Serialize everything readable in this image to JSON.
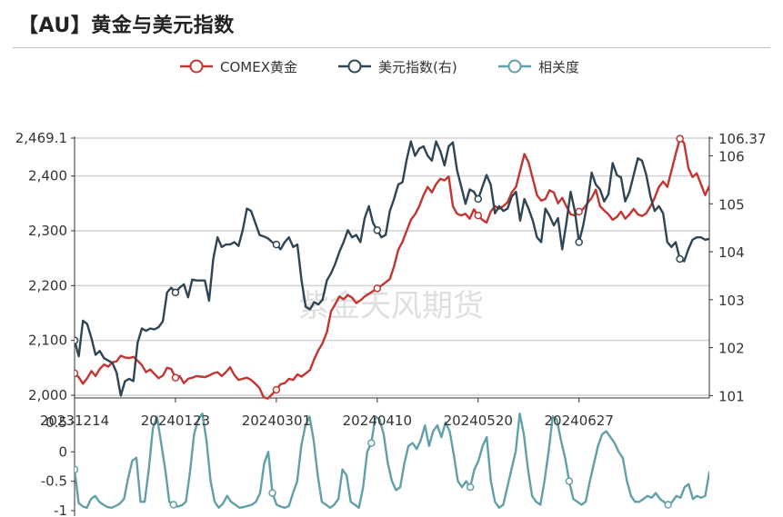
{
  "page": {
    "title": "【AU】黄金与美元指数"
  },
  "watermark": "紫金天风期货",
  "chart_data": [
    {
      "type": "line",
      "title": "【AU】黄金与美元指数",
      "legend": {
        "position": "top-center",
        "entries": [
          {
            "name": "COMEX黄金",
            "color": "#c23531",
            "axis": "left"
          },
          {
            "name": "美元指数(右)",
            "color": "#2f4554",
            "axis": "right"
          }
        ]
      },
      "grid": true,
      "x_ticks": [
        "20231214",
        "20240123",
        "20240301",
        "20240410",
        "20240520",
        "20240627"
      ],
      "y_left": {
        "ticks": [
          "2,000",
          "2,100",
          "2,200",
          "2,300",
          "2,400",
          "2,469.1"
        ],
        "range": [
          1995,
          2469.1
        ]
      },
      "y_right": {
        "ticks": [
          "101",
          "102",
          "103",
          "104",
          "105",
          "106",
          "106.37"
        ],
        "range": [
          100.95,
          106.37
        ]
      },
      "series": [
        {
          "name": "COMEX黄金",
          "axis": "left",
          "color": "#c23531",
          "values": [
            2040,
            2033,
            2021,
            2031,
            2044,
            2035,
            2048,
            2056,
            2052,
            2060,
            2062,
            2072,
            2069,
            2068,
            2070,
            2063,
            2055,
            2042,
            2047,
            2039,
            2031,
            2036,
            2050,
            2048,
            2032,
            2035,
            2022,
            2030,
            2032,
            2035,
            2034,
            2033,
            2036,
            2040,
            2042,
            2035,
            2042,
            2051,
            2037,
            2028,
            2030,
            2032,
            2028,
            2021,
            2013,
            1996,
            1994,
            2002,
            2010,
            2020,
            2022,
            2030,
            2028,
            2038,
            2034,
            2040,
            2046,
            2066,
            2082,
            2095,
            2115,
            2153,
            2166,
            2180,
            2175,
            2183,
            2178,
            2168,
            2173,
            2180,
            2185,
            2190,
            2195,
            2200,
            2206,
            2212,
            2235,
            2265,
            2280,
            2300,
            2320,
            2330,
            2345,
            2365,
            2380,
            2370,
            2385,
            2395,
            2392,
            2399,
            2345,
            2331,
            2328,
            2331,
            2322,
            2339,
            2328,
            2320,
            2315,
            2335,
            2345,
            2340,
            2345,
            2352,
            2370,
            2380,
            2410,
            2440,
            2425,
            2395,
            2365,
            2355,
            2358,
            2374,
            2370,
            2350,
            2360,
            2345,
            2330,
            2328,
            2335,
            2340,
            2350,
            2360,
            2375,
            2345,
            2337,
            2330,
            2320,
            2325,
            2335,
            2322,
            2330,
            2340,
            2330,
            2327,
            2332,
            2345,
            2360,
            2380,
            2390,
            2380,
            2410,
            2440,
            2468,
            2460,
            2415,
            2398,
            2405,
            2385,
            2365,
            2382
          ]
        },
        {
          "name": "美元指数(右)",
          "axis": "right",
          "color": "#2f4554",
          "values": [
            102.15,
            101.82,
            102.56,
            102.49,
            102.2,
            101.85,
            101.93,
            101.78,
            101.73,
            101.68,
            101.48,
            101.0,
            101.3,
            101.35,
            101.3,
            102.1,
            102.4,
            102.35,
            102.4,
            102.38,
            102.43,
            102.55,
            103.15,
            103.25,
            103.15,
            103.25,
            103.32,
            103.05,
            103.42,
            103.4,
            103.4,
            103.4,
            102.98,
            103.85,
            104.3,
            104.1,
            104.15,
            104.15,
            104.2,
            104.12,
            104.45,
            104.9,
            104.85,
            104.6,
            104.35,
            104.32,
            104.28,
            104.2,
            104.15,
            104.05,
            104.2,
            104.3,
            104.1,
            104.15,
            103.4,
            102.85,
            102.8,
            102.95,
            102.9,
            103.0,
            103.4,
            103.55,
            103.75,
            104.0,
            104.2,
            104.45,
            104.3,
            104.35,
            104.2,
            104.7,
            104.95,
            104.6,
            104.45,
            104.3,
            104.35,
            104.85,
            105.1,
            105.4,
            105.45,
            105.92,
            106.3,
            106.0,
            106.15,
            106.2,
            106.0,
            105.9,
            106.3,
            106.1,
            105.8,
            106.2,
            106.28,
            105.7,
            105.35,
            105.0,
            105.3,
            105.25,
            105.1,
            105.35,
            105.6,
            105.4,
            104.8,
            104.95,
            104.85,
            104.9,
            105.15,
            105.25,
            104.65,
            105.1,
            104.9,
            104.65,
            104.3,
            104.2,
            104.9,
            104.75,
            104.55,
            104.7,
            104.05,
            104.6,
            105.25,
            104.85,
            104.2,
            104.55,
            105.02,
            105.65,
            105.4,
            105.3,
            105.05,
            105.2,
            105.85,
            105.6,
            105.55,
            105.05,
            105.25,
            105.6,
            105.95,
            105.9,
            105.6,
            105.15,
            104.85,
            104.95,
            104.8,
            104.2,
            104.1,
            104.2,
            103.85,
            103.8,
            104.05,
            104.25,
            104.3,
            104.3,
            104.25,
            104.27,
            104.25,
            104.28
          ]
        }
      ]
    },
    {
      "type": "line",
      "legend": {
        "entries": [
          {
            "name": "相关度",
            "color": "#61a0a8"
          }
        ]
      },
      "grid": false,
      "y": {
        "ticks": [
          "-1",
          "-0.5",
          "0",
          "0.5"
        ],
        "range": [
          -1,
          0.7
        ]
      },
      "series": [
        {
          "name": "相关度",
          "color": "#61a0a8",
          "values": [
            -0.3,
            -0.87,
            -0.93,
            -0.95,
            -0.8,
            -0.75,
            -0.85,
            -0.9,
            -0.94,
            -0.95,
            -0.92,
            -0.88,
            -0.8,
            -0.45,
            -0.15,
            -0.1,
            -0.85,
            -0.85,
            -0.3,
            0.4,
            0.6,
            0.15,
            -0.3,
            -0.85,
            -0.9,
            -0.93,
            -0.91,
            -0.85,
            -0.35,
            0.3,
            0.55,
            0.65,
            0.2,
            -0.5,
            -0.85,
            -0.95,
            -0.88,
            -0.75,
            -0.85,
            -0.9,
            -0.95,
            -0.94,
            -0.92,
            -0.9,
            -0.85,
            -0.7,
            -0.2,
            0.0,
            -0.7,
            -0.9,
            -0.93,
            -0.95,
            -0.92,
            -0.7,
            -0.5,
            0.1,
            0.45,
            0.6,
            0.2,
            -0.4,
            -0.85,
            -0.9,
            -0.95,
            -0.9,
            -0.8,
            -0.3,
            -0.4,
            -0.85,
            -0.9,
            -0.95,
            -0.6,
            0.0,
            0.15,
            0.6,
            0.55,
            0.3,
            -0.2,
            -0.5,
            -0.65,
            -0.6,
            -0.2,
            0.1,
            0.15,
            0.05,
            0.2,
            0.45,
            0.1,
            0.35,
            0.45,
            0.25,
            0.5,
            0.35,
            -0.05,
            -0.5,
            -0.6,
            -0.5,
            -0.6,
            -0.3,
            -0.15,
            0.1,
            0.25,
            -0.5,
            -0.85,
            -0.95,
            -0.9,
            -0.6,
            -0.3,
            0.0,
            0.65,
            0.3,
            -0.3,
            -0.75,
            -0.85,
            -0.9,
            -0.5,
            0.0,
            0.6,
            0.55,
            0.2,
            -0.1,
            -0.5,
            -0.8,
            -0.85,
            -0.9,
            -0.85,
            -0.5,
            -0.2,
            0.1,
            0.3,
            0.35,
            0.25,
            0.15,
            0.0,
            -0.1,
            -0.5,
            -0.75,
            -0.85,
            -0.85,
            -0.8,
            -0.75,
            -0.78,
            -0.7,
            -0.8,
            -0.85,
            -0.9,
            -0.85,
            -0.75,
            -0.78,
            -0.6,
            -0.55,
            -0.8,
            -0.75,
            -0.78,
            -0.75,
            -0.35
          ]
        }
      ]
    }
  ]
}
